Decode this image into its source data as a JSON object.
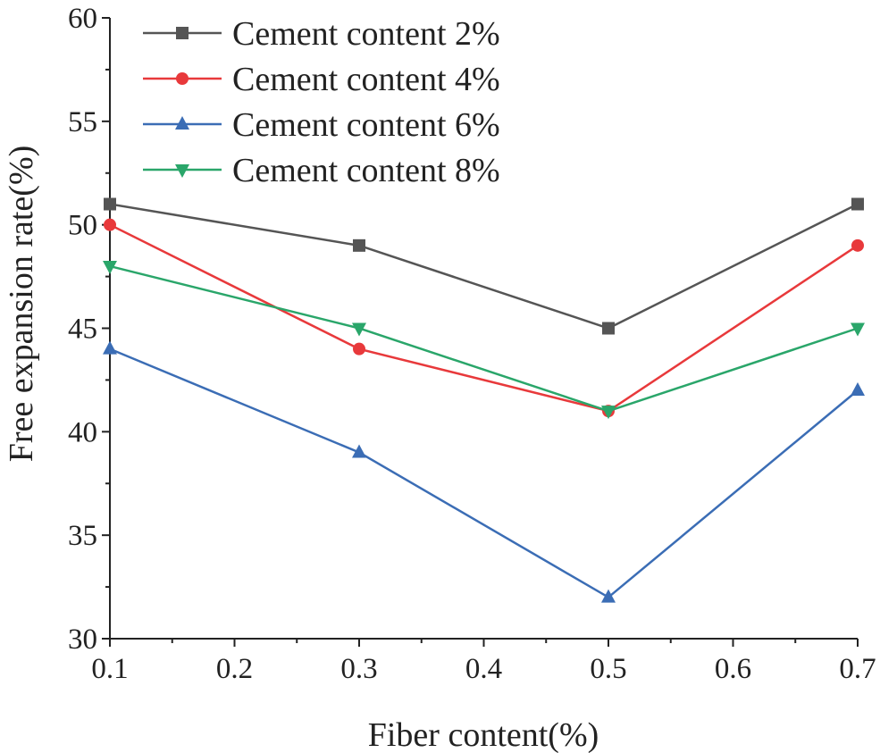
{
  "chart_data": {
    "type": "line",
    "title": "",
    "xlabel": "Fiber content(%)",
    "ylabel": "Free expansion rate(%)",
    "x": [
      0.1,
      0.3,
      0.5,
      0.7
    ],
    "xlim": [
      0.1,
      0.7
    ],
    "ylim": [
      30,
      60
    ],
    "x_ticks": [
      "0.1",
      "0.2",
      "0.3",
      "0.4",
      "0.5",
      "0.6",
      "0.7"
    ],
    "y_ticks": [
      "30",
      "35",
      "40",
      "45",
      "50",
      "55",
      "60"
    ],
    "grid": false,
    "legend_position": "top-left",
    "series": [
      {
        "name": "Cement content 2%",
        "marker": "square",
        "color": "#555555",
        "values": [
          51,
          49,
          45,
          51
        ]
      },
      {
        "name": "Cement content 4%",
        "marker": "circle",
        "color": "#e8393b",
        "values": [
          50,
          44,
          41,
          49
        ]
      },
      {
        "name": "Cement content 6%",
        "marker": "triangle-up",
        "color": "#3b6db5",
        "values": [
          44,
          39,
          32,
          42
        ]
      },
      {
        "name": "Cement content 8%",
        "marker": "triangle-down",
        "color": "#2aa66a",
        "values": [
          48,
          45,
          41,
          45
        ]
      }
    ]
  }
}
